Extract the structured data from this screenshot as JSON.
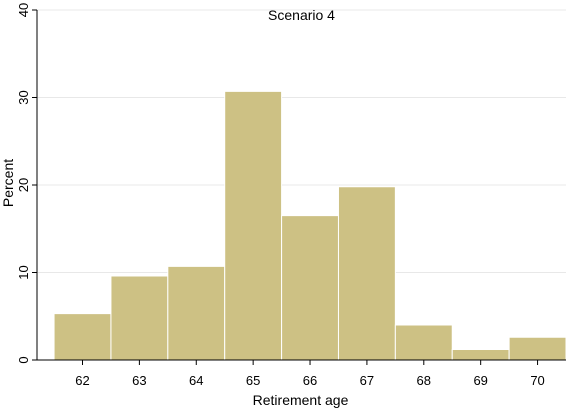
{
  "chart_data": {
    "type": "bar",
    "title": "Scenario 4",
    "xlabel": "Retirement age",
    "ylabel": "Percent",
    "categories": [
      "62",
      "63",
      "64",
      "65",
      "66",
      "67",
      "68",
      "69",
      "70"
    ],
    "values": [
      5.3,
      9.6,
      10.7,
      30.7,
      16.5,
      19.8,
      4.0,
      1.2,
      2.6
    ],
    "xlim": [
      61.2,
      70.5
    ],
    "ylim": [
      0,
      40
    ],
    "yticks": [
      0,
      10,
      20,
      30,
      40
    ],
    "grid": true,
    "colors": {
      "bar_fill": "#cdc184",
      "bar_edge": "#ffffff",
      "grid": "#e8e8e8",
      "axis": "#000000"
    }
  }
}
